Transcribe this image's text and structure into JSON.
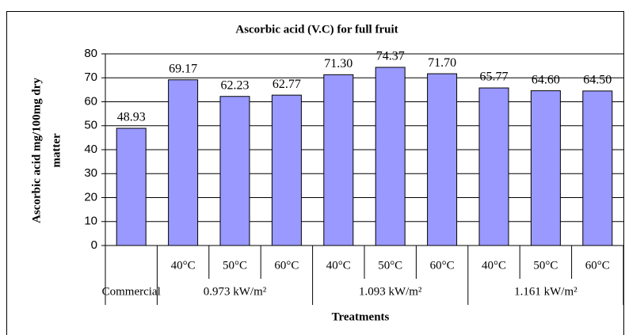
{
  "chart_data": {
    "type": "bar",
    "title": "Ascorbic acid (V.C) for full fruit",
    "ylabel": [
      "Ascorbic acid mg/100mg dry",
      "matter"
    ],
    "xlabel": "Treatments",
    "groups": [
      {
        "label": "Commercial",
        "categories": [
          null
        ]
      },
      {
        "label": "0.973 kW/m²",
        "categories": [
          "40°C",
          "50°C",
          "60°C"
        ]
      },
      {
        "label": "1.093 kW/m²",
        "categories": [
          "40°C",
          "50°C",
          "60°C"
        ]
      },
      {
        "label": "1.161 kW/m²",
        "categories": [
          "40°C",
          "50°C",
          "60°C"
        ]
      }
    ],
    "values": [
      48.93,
      69.17,
      62.23,
      62.77,
      71.3,
      74.37,
      71.7,
      65.77,
      64.6,
      64.5
    ],
    "value_labels": [
      "48.93",
      "69.17",
      "62.23",
      "62.77",
      "71.30",
      "74.37",
      "71.70",
      "65.77",
      "64.60",
      "64.50"
    ],
    "color": "#9999ff",
    "ylim": [
      0,
      80
    ],
    "yticks": [
      0,
      10,
      20,
      30,
      40,
      50,
      60,
      70,
      80
    ],
    "grid": true
  }
}
